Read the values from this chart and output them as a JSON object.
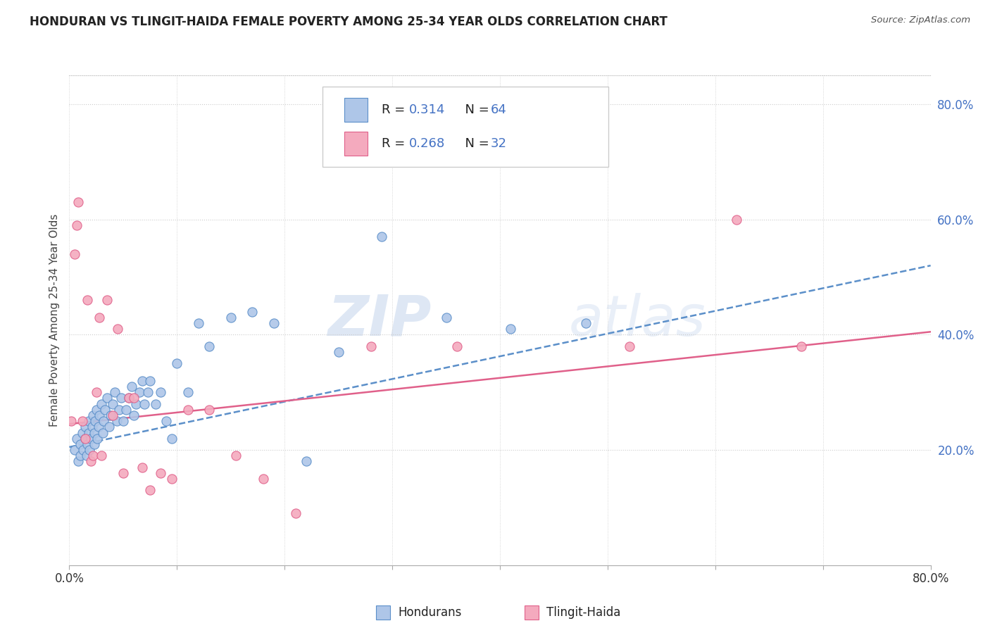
{
  "title": "HONDURAN VS TLINGIT-HAIDA FEMALE POVERTY AMONG 25-34 YEAR OLDS CORRELATION CHART",
  "source": "Source: ZipAtlas.com",
  "ylabel": "Female Poverty Among 25-34 Year Olds",
  "ytick_labels": [
    "20.0%",
    "40.0%",
    "60.0%",
    "80.0%"
  ],
  "ytick_values": [
    0.2,
    0.4,
    0.6,
    0.8
  ],
  "xlim": [
    0.0,
    0.8
  ],
  "ylim": [
    0.0,
    0.85
  ],
  "legend_r1_label": "R = ",
  "legend_r1_val": "0.314",
  "legend_n1_label": "N = ",
  "legend_n1_val": "64",
  "legend_r2_label": "R = ",
  "legend_r2_val": "0.268",
  "legend_n2_label": "N = ",
  "legend_n2_val": "32",
  "color_blue_fill": "#AEC6E8",
  "color_blue_edge": "#5B8FC9",
  "color_pink_fill": "#F4AABE",
  "color_pink_edge": "#E0608A",
  "color_blue_trend": "#5B8FC9",
  "color_pink_trend": "#E0608A",
  "color_blue_text": "#4472C4",
  "color_axis_text": "#4472C4",
  "watermark_zip": "ZIP",
  "watermark_atlas": "atlas",
  "blue_scatter_x": [
    0.005,
    0.007,
    0.008,
    0.01,
    0.01,
    0.012,
    0.013,
    0.015,
    0.015,
    0.016,
    0.017,
    0.018,
    0.018,
    0.019,
    0.02,
    0.021,
    0.022,
    0.023,
    0.023,
    0.024,
    0.025,
    0.026,
    0.027,
    0.028,
    0.03,
    0.031,
    0.032,
    0.033,
    0.035,
    0.037,
    0.038,
    0.04,
    0.042,
    0.044,
    0.046,
    0.048,
    0.05,
    0.053,
    0.055,
    0.058,
    0.06,
    0.062,
    0.065,
    0.068,
    0.07,
    0.073,
    0.075,
    0.08,
    0.085,
    0.09,
    0.095,
    0.1,
    0.11,
    0.12,
    0.13,
    0.15,
    0.17,
    0.19,
    0.22,
    0.25,
    0.29,
    0.35,
    0.41,
    0.48
  ],
  "blue_scatter_y": [
    0.2,
    0.22,
    0.18,
    0.19,
    0.21,
    0.23,
    0.2,
    0.22,
    0.24,
    0.19,
    0.21,
    0.23,
    0.25,
    0.2,
    0.22,
    0.24,
    0.26,
    0.21,
    0.23,
    0.25,
    0.27,
    0.22,
    0.24,
    0.26,
    0.28,
    0.23,
    0.25,
    0.27,
    0.29,
    0.24,
    0.26,
    0.28,
    0.3,
    0.25,
    0.27,
    0.29,
    0.25,
    0.27,
    0.29,
    0.31,
    0.26,
    0.28,
    0.3,
    0.32,
    0.28,
    0.3,
    0.32,
    0.28,
    0.3,
    0.25,
    0.22,
    0.35,
    0.3,
    0.42,
    0.38,
    0.43,
    0.44,
    0.42,
    0.18,
    0.37,
    0.57,
    0.43,
    0.41,
    0.42
  ],
  "pink_scatter_x": [
    0.002,
    0.005,
    0.007,
    0.008,
    0.012,
    0.015,
    0.017,
    0.02,
    0.022,
    0.025,
    0.028,
    0.03,
    0.035,
    0.04,
    0.045,
    0.05,
    0.055,
    0.06,
    0.068,
    0.075,
    0.085,
    0.095,
    0.11,
    0.13,
    0.155,
    0.18,
    0.21,
    0.28,
    0.36,
    0.52,
    0.62,
    0.68
  ],
  "pink_scatter_y": [
    0.25,
    0.54,
    0.59,
    0.63,
    0.25,
    0.22,
    0.46,
    0.18,
    0.19,
    0.3,
    0.43,
    0.19,
    0.46,
    0.26,
    0.41,
    0.16,
    0.29,
    0.29,
    0.17,
    0.13,
    0.16,
    0.15,
    0.27,
    0.27,
    0.19,
    0.15,
    0.09,
    0.38,
    0.38,
    0.38,
    0.6,
    0.38
  ],
  "blue_trend_x0": 0.0,
  "blue_trend_y0": 0.205,
  "blue_trend_x1": 0.8,
  "blue_trend_y1": 0.52,
  "pink_trend_x0": 0.0,
  "pink_trend_y0": 0.245,
  "pink_trend_x1": 0.8,
  "pink_trend_y1": 0.405
}
